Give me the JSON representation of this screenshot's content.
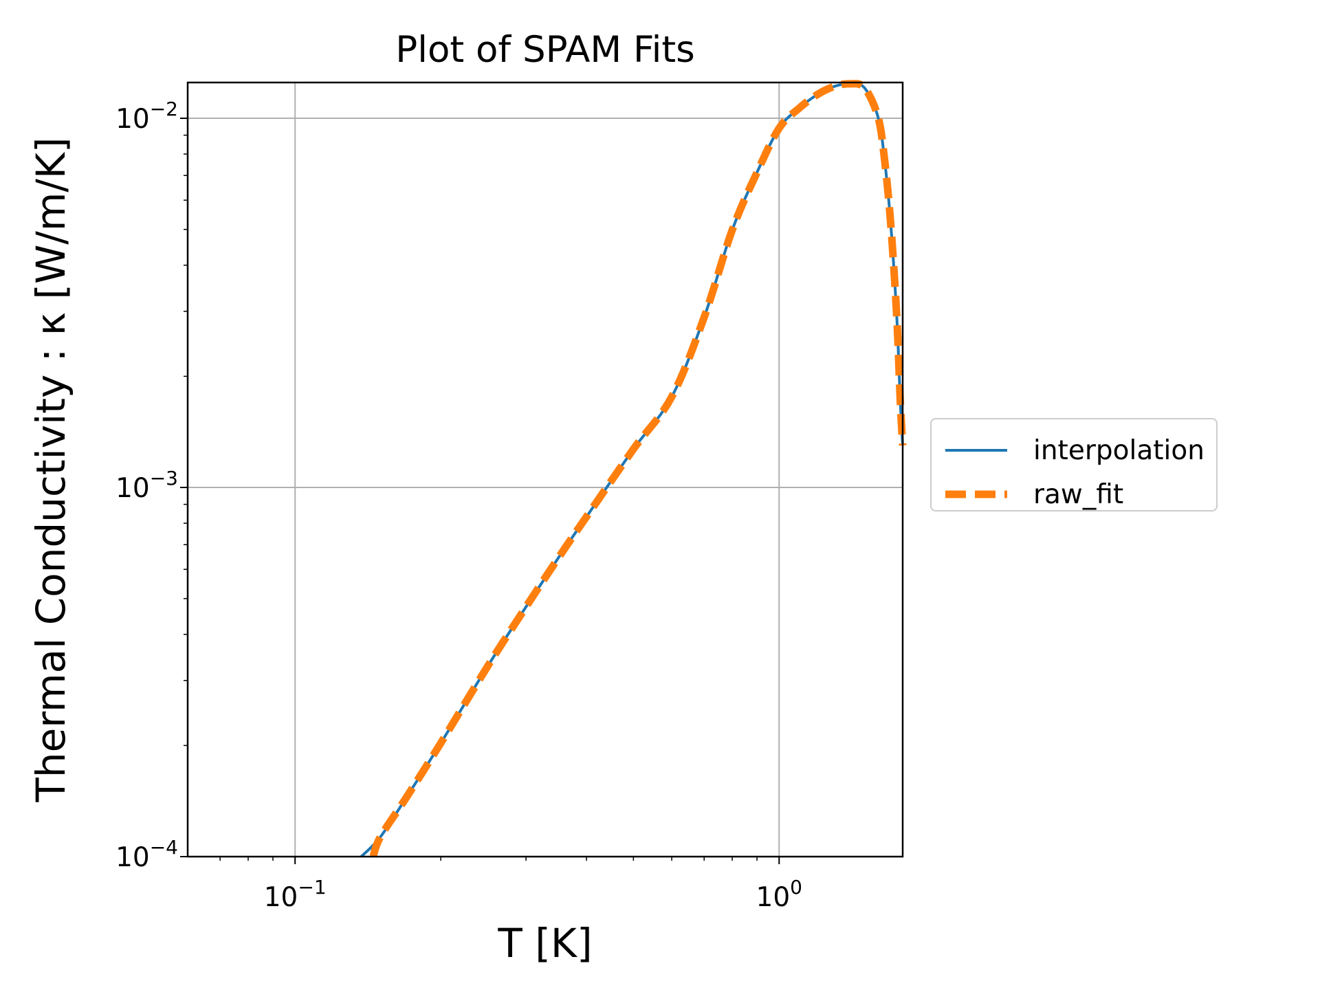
{
  "chart_data": {
    "type": "line",
    "title": "Plot of SPAM Fits",
    "xlabel": "T [K]",
    "ylabel": "Thermal Conductivity : κ [W/m/K]",
    "xscale": "log",
    "yscale": "log",
    "xlim": [
      0.06,
      1.8
    ],
    "ylim": [
      0.0001,
      0.0125
    ],
    "grid": true,
    "legend_position": "center-right",
    "x_ticks": [
      {
        "value": 0.1,
        "base": "10",
        "exp": "−1"
      },
      {
        "value": 1,
        "base": "10",
        "exp": "0"
      }
    ],
    "y_ticks": [
      {
        "value": 0.01,
        "base": "10",
        "exp": "−2"
      },
      {
        "value": 0.001,
        "base": "10",
        "exp": "−3"
      },
      {
        "value": 0.0001,
        "base": "10",
        "exp": "−4"
      }
    ],
    "series": [
      {
        "name": "interpolation",
        "color": "#1f77b4",
        "style": "solid",
        "x": [
          0.137,
          0.15,
          0.17,
          0.2,
          0.25,
          0.3,
          0.35,
          0.4,
          0.5,
          0.6,
          0.7,
          0.8,
          0.9,
          1.0,
          1.1,
          1.2,
          1.3,
          1.4,
          1.5,
          1.6,
          1.65,
          1.7,
          1.75,
          1.78,
          1.8
        ],
        "y": [
          0.0001,
          0.000113,
          0.000145,
          0.000203,
          0.000328,
          0.000475,
          0.000645,
          0.000833,
          0.00127,
          0.00176,
          0.00289,
          0.00498,
          0.00713,
          0.0094,
          0.01065,
          0.0116,
          0.0122,
          0.0124,
          0.0121,
          0.0101,
          0.0078,
          0.0052,
          0.0029,
          0.0017,
          0.0013
        ]
      },
      {
        "name": "raw_fit",
        "color": "#ff7f0e",
        "style": "dashed",
        "x": [
          0.145,
          0.15,
          0.17,
          0.2,
          0.25,
          0.3,
          0.35,
          0.4,
          0.5,
          0.6,
          0.7,
          0.8,
          0.9,
          1.0,
          1.1,
          1.2,
          1.3,
          1.4,
          1.5,
          1.6,
          1.65,
          1.7,
          1.75,
          1.78,
          1.8
        ],
        "y": [
          0.0001,
          0.000113,
          0.000145,
          0.000203,
          0.000328,
          0.000475,
          0.000645,
          0.000833,
          0.00127,
          0.00176,
          0.00289,
          0.00498,
          0.00713,
          0.0094,
          0.01065,
          0.0116,
          0.0122,
          0.0124,
          0.0121,
          0.0101,
          0.0078,
          0.0052,
          0.0029,
          0.0017,
          0.0013
        ]
      }
    ]
  }
}
